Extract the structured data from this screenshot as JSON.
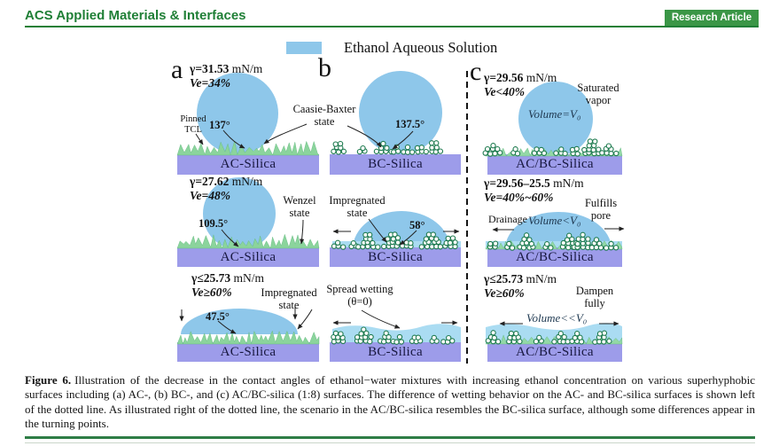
{
  "header": {
    "journal": "ACS Applied Materials & Interfaces",
    "badge": "Research Article"
  },
  "legend": {
    "label": "Ethanol Aqueous Solution"
  },
  "panel_labels": {
    "a": "a",
    "b": "b",
    "c": "c"
  },
  "surfaces": {
    "ac": "AC-Silica",
    "bc": "BC-Silica",
    "acbc": "AC/BC-Silica"
  },
  "panels": {
    "a1": {
      "gamma": "γ=31.53",
      "unit": "mN/m",
      "ve": "Ve=34%",
      "angle": "137°"
    },
    "b1": {
      "angle": "137.5°"
    },
    "c1": {
      "gamma": "γ=29.56",
      "unit": "mN/m",
      "ve": "Ve<40%",
      "volume": "Volume=V₀",
      "note1": "Saturated",
      "note2": "vapor"
    },
    "a2": {
      "gamma": "γ=27.62",
      "unit": "mN/m",
      "ve": "Ve=48%",
      "angle": "109.5°",
      "state1": "Wenzel",
      "state2": "state"
    },
    "b2": {
      "angle": "58°",
      "state1": "Impregnated",
      "state2": "state"
    },
    "c2": {
      "gamma": "γ=29.56–25.5",
      "unit": "mN/m",
      "ve": "Ve=40%~60%",
      "volume": "Volume<V₀",
      "note1": "Fulfills",
      "note2": "pore",
      "drainage": "Drainage"
    },
    "a3": {
      "gamma": "γ≤25.73",
      "unit": "mN/m",
      "ve": "Ve≥60%",
      "angle": "47.5°",
      "state1": "Impregnated",
      "state2": "state"
    },
    "b3": {
      "state1": "Spread wetting",
      "state2": "(θ=0)"
    },
    "c3": {
      "gamma": "γ≤25.73",
      "unit": "mN/m",
      "ve": "Ve≥60%",
      "volume": "Volume<<V₀",
      "note1": "Dampen",
      "note2": "fully"
    }
  },
  "shared": {
    "cassie1": "Caasie-Baxter",
    "cassie2": "state",
    "pinned1": "Pinned",
    "pinned2": "TCL"
  },
  "caption": {
    "label": "Figure 6.",
    "text": "Illustration of the decrease in the contact angles of ethanol−water mixtures with increasing ethanol concentration on various superhyphobic surfaces including (a) AC-, (b) BC-, and (c) AC/BC-silica (1:8) surfaces. The difference of wetting behavior on the AC- and BC-silica surfaces is shown left of the dotted line. As illustrated right of the dotted line, the scenario in the AC/BC-silica resembles the BC-silica surface, although some differences appear in the turning points."
  },
  "colors": {
    "acs_green": "#1f7f36",
    "badge_green": "#3a9646",
    "droplet_blue": "#8ec7ea",
    "surface_purple": "#9d9cea",
    "texture_green": "#8bd49c",
    "particle_outline_green": "#1d7a4e",
    "film_blue": "#aadcf2"
  }
}
